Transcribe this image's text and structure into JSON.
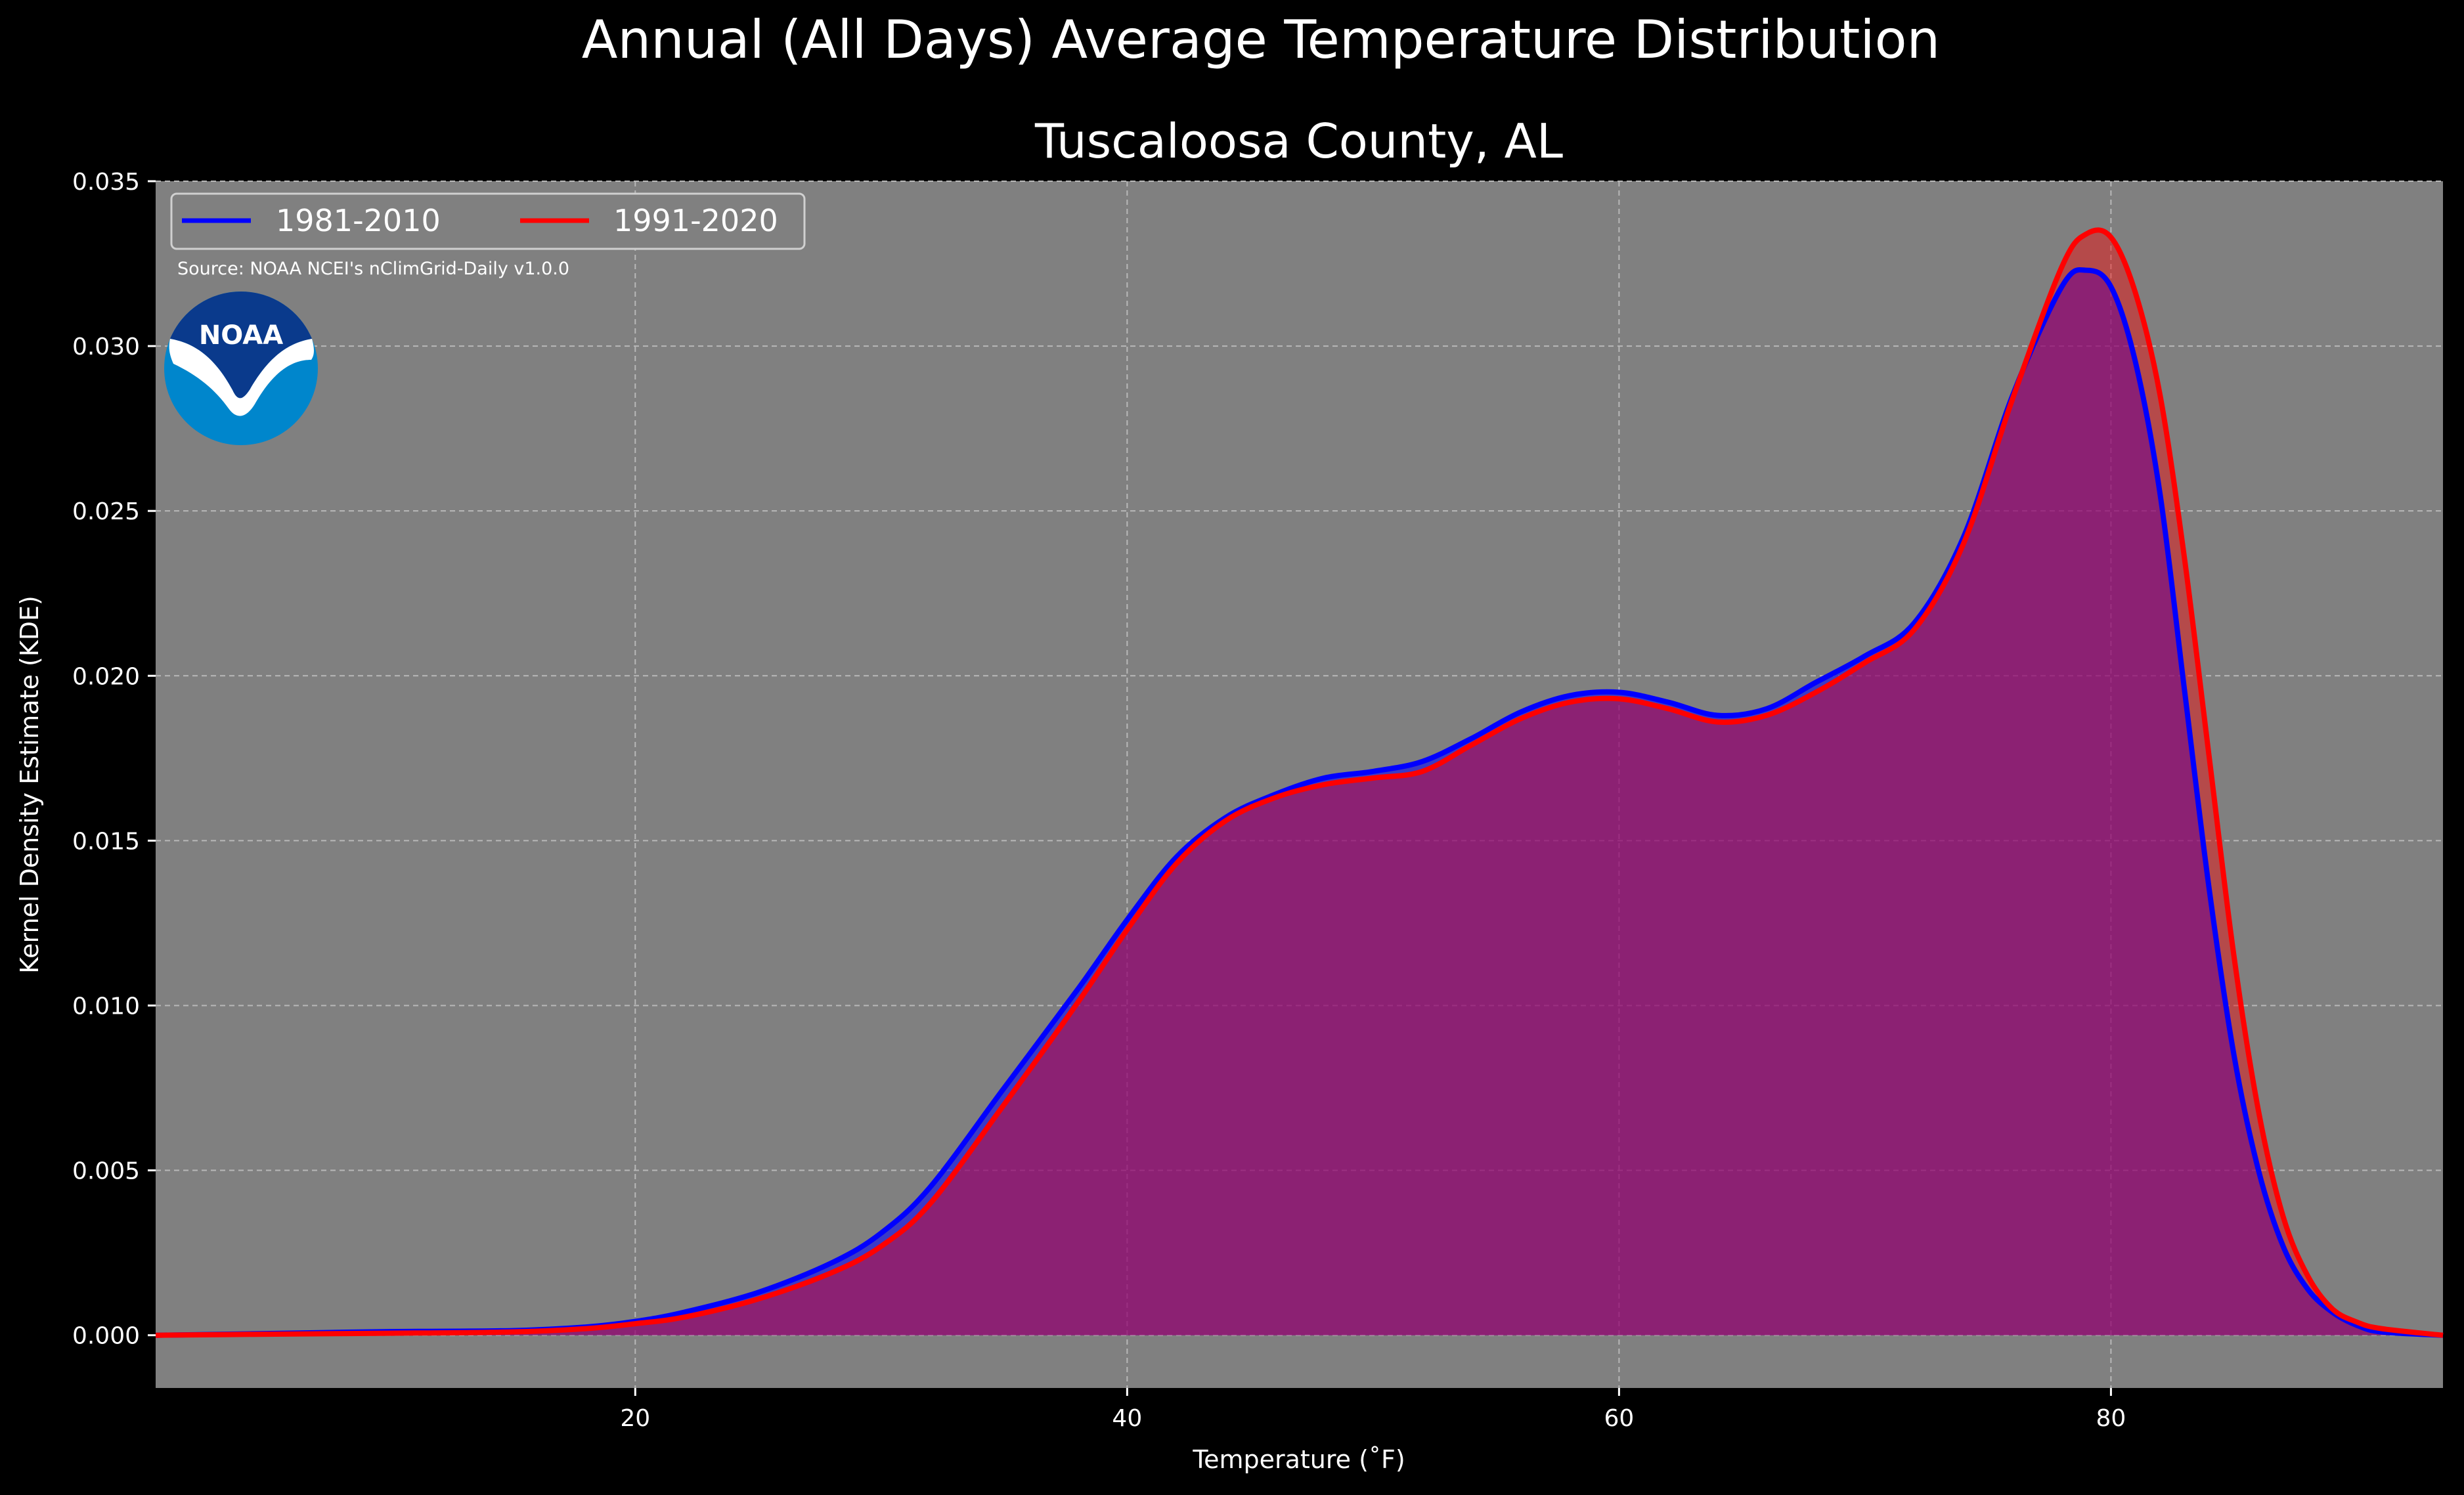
{
  "chart_data": {
    "type": "area",
    "title": "Annual (All Days) Average Temperature Distribution",
    "subtitle": "Tuscaloosa County, AL",
    "xlabel": "Temperature (˚F)",
    "ylabel": "Kernel Density Estimate (KDE)",
    "xlim": [
      0.5,
      93.5
    ],
    "ylim": [
      -0.0016,
      0.035
    ],
    "xticks": [
      20,
      40,
      60,
      80
    ],
    "yticks": [
      0.0,
      0.005,
      0.01,
      0.015,
      0.02,
      0.025,
      0.03,
      0.035
    ],
    "ytick_labels": [
      "0.000",
      "0.005",
      "0.010",
      "0.015",
      "0.020",
      "0.025",
      "0.030",
      "0.035"
    ],
    "grid": true,
    "legend_position": "top-left",
    "source_note": "Source: NOAA NCEI's nClimGrid-Daily v1.0.0",
    "logo_text": "NOAA",
    "colors": {
      "background": "#000000",
      "plot_bg": "#808080",
      "fill": "#9e1f5d"
    },
    "series": [
      {
        "name": "1981-2010",
        "color": "#0000ff",
        "x": [
          0.5,
          5,
          10,
          15,
          18,
          20,
          22,
          25,
          28,
          30,
          32,
          35,
          38,
          40,
          42,
          44,
          46,
          48,
          50,
          52,
          54,
          56,
          58,
          60,
          62,
          64,
          66,
          68,
          70,
          72,
          74,
          76,
          78,
          79,
          80,
          81,
          82,
          83,
          84,
          85,
          86,
          87,
          88,
          89,
          90,
          91,
          93.5
        ],
        "y": [
          0.0,
          5e-05,
          0.00011,
          0.00014,
          0.00025,
          0.00042,
          0.0007,
          0.0013,
          0.0022,
          0.0031,
          0.0045,
          0.0075,
          0.0105,
          0.0126,
          0.0145,
          0.0157,
          0.0164,
          0.0169,
          0.0171,
          0.0174,
          0.0181,
          0.0189,
          0.0194,
          0.0195,
          0.0192,
          0.0188,
          0.019,
          0.0198,
          0.0206,
          0.0216,
          0.0242,
          0.0285,
          0.0318,
          0.0323,
          0.0318,
          0.0295,
          0.0255,
          0.0195,
          0.0135,
          0.0085,
          0.005,
          0.0027,
          0.0014,
          0.0007,
          0.0003,
          0.0001,
          0.0
        ]
      },
      {
        "name": "1991-2020",
        "color": "#ff0000",
        "x": [
          0.5,
          5,
          10,
          15,
          18,
          20,
          22,
          25,
          28,
          30,
          32,
          35,
          38,
          40,
          42,
          44,
          46,
          48,
          50,
          52,
          54,
          56,
          58,
          60,
          62,
          64,
          66,
          68,
          70,
          72,
          74,
          76,
          78,
          79,
          80,
          81,
          82,
          83,
          84,
          85,
          86,
          87,
          88,
          89,
          90,
          91,
          93.5
        ],
        "y": [
          0.0,
          3e-05,
          6e-05,
          0.0001,
          0.0002,
          0.00035,
          0.00055,
          0.0011,
          0.0019,
          0.0027,
          0.004,
          0.007,
          0.0101,
          0.0123,
          0.0143,
          0.0156,
          0.0163,
          0.0167,
          0.0169,
          0.0171,
          0.0179,
          0.0187,
          0.0192,
          0.0193,
          0.019,
          0.0186,
          0.0188,
          0.0195,
          0.0204,
          0.0214,
          0.024,
          0.0284,
          0.0324,
          0.0334,
          0.0333,
          0.0316,
          0.0285,
          0.0235,
          0.0175,
          0.0115,
          0.0068,
          0.0036,
          0.0018,
          0.0008,
          0.0004,
          0.0002,
          0.0
        ]
      }
    ]
  }
}
